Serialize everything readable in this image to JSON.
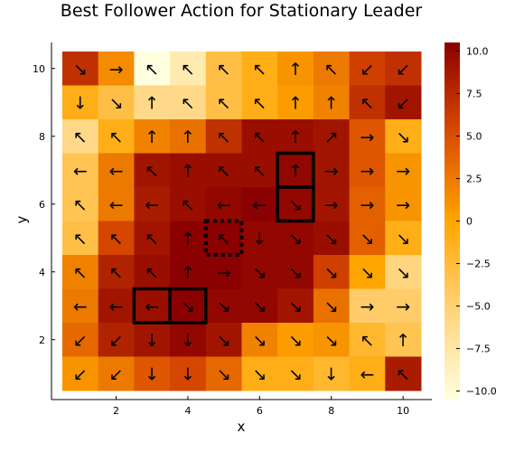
{
  "chart_data": {
    "type": "heatmap",
    "title": "Best Follower Action for Stationary Leader",
    "xlabel": "x",
    "ylabel": "y",
    "x": [
      1,
      2,
      3,
      4,
      5,
      6,
      7,
      8,
      9,
      10
    ],
    "y": [
      1,
      2,
      3,
      4,
      5,
      6,
      7,
      8,
      9,
      10
    ],
    "xlim": [
      0.5,
      10.5
    ],
    "ylim": [
      0.5,
      10.5
    ],
    "xticks": [
      2,
      4,
      6,
      8,
      10
    ],
    "yticks": [
      2,
      4,
      6,
      8,
      10
    ],
    "xtick_labels": [
      "2",
      "4",
      "6",
      "8",
      "10"
    ],
    "ytick_labels": [
      "2",
      "4",
      "6",
      "8",
      "10"
    ],
    "colormap": "heat",
    "color_range": [
      -10.5,
      10.5
    ],
    "colorbar_ticks": [
      10.0,
      7.5,
      5.0,
      2.5,
      0,
      -2.5,
      -5.0,
      -7.5,
      -10.0
    ],
    "colorbar_tick_labels": [
      "10.0",
      "7.5",
      "5.0",
      "2.5",
      "0",
      "−2.5",
      "−5.0",
      "−7.5",
      "−10.0"
    ],
    "grid": false,
    "values_by_row_from_top": [
      [
        7.0,
        1.5,
        -10.5,
        -8.0,
        -3.0,
        -1.0,
        1.0,
        2.5,
        6.0,
        7.0
      ],
      [
        -1.0,
        -3.0,
        -6.0,
        -6.0,
        -3.0,
        -1.0,
        0.5,
        2.0,
        7.0,
        9.0
      ],
      [
        -6.0,
        -1.0,
        2.0,
        3.0,
        7.0,
        9.5,
        9.5,
        9.0,
        4.5,
        -1.0
      ],
      [
        -3.5,
        2.5,
        9.0,
        9.5,
        9.5,
        9.5,
        10.0,
        9.0,
        4.5,
        1.0
      ],
      [
        -3.5,
        2.5,
        8.5,
        9.5,
        10.0,
        10.5,
        10.0,
        9.0,
        4.0,
        1.0
      ],
      [
        -3.0,
        5.5,
        9.0,
        10.5,
        10.5,
        10.0,
        10.0,
        9.5,
        4.0,
        -1.0
      ],
      [
        2.0,
        8.0,
        9.5,
        10.5,
        10.5,
        10.0,
        10.0,
        6.0,
        0.0,
        -5.5
      ],
      [
        2.5,
        9.0,
        9.5,
        10.5,
        10.0,
        10.0,
        9.0,
        3.0,
        -4.5,
        -4.5
      ],
      [
        3.5,
        8.0,
        9.0,
        10.0,
        9.0,
        2.0,
        0.5,
        1.0,
        -2.0,
        -3.5
      ],
      [
        1.0,
        2.5,
        4.5,
        5.5,
        3.5,
        -1.0,
        -1.0,
        -2.0,
        -1.0,
        8.5
      ]
    ],
    "arrows_by_row_from_top": [
      [
        "↘",
        "→",
        "↖",
        "↖",
        "↖",
        "↖",
        "↑",
        "↖",
        "↙",
        "↙"
      ],
      [
        "↓",
        "↘",
        "↑",
        "↖",
        "↖",
        "↖",
        "↑",
        "↑",
        "↖",
        "↙"
      ],
      [
        "↖",
        "↖",
        "↑",
        "↑",
        "↖",
        "↖",
        "↑",
        "↗",
        "→",
        "↘"
      ],
      [
        "←",
        "←",
        "↖",
        "↑",
        "↖",
        "↖",
        "↑",
        "→",
        "→",
        "→"
      ],
      [
        "↖",
        "←",
        "←",
        "↖",
        "←",
        "←",
        "↘",
        "→",
        "→",
        "→"
      ],
      [
        "↖",
        "↖",
        "↖",
        "↑",
        "↖",
        "↓",
        "↘",
        "↘",
        "↘",
        "↘"
      ],
      [
        "↖",
        "↖",
        "↖",
        "↑",
        "→",
        "↘",
        "↘",
        "↘",
        "↘",
        "↘"
      ],
      [
        "←",
        "←",
        "←",
        "↘",
        "↘",
        "↘",
        "↘",
        "↘",
        "→",
        "→"
      ],
      [
        "↙",
        "↙",
        "↓",
        "↓",
        "↘",
        "↘",
        "↘",
        "↘",
        "↖",
        "↑"
      ],
      [
        "↙",
        "↙",
        "↓",
        "↓",
        "↘",
        "↘",
        "↘",
        "↓",
        "←",
        "↖"
      ]
    ],
    "highlight_boxes": [
      {
        "x": 7,
        "y": 7,
        "style": "solid"
      },
      {
        "x": 7,
        "y": 6,
        "style": "solid"
      },
      {
        "x": 3,
        "y": 3,
        "style": "solid"
      },
      {
        "x": 4,
        "y": 3,
        "style": "solid"
      },
      {
        "x": 5,
        "y": 5,
        "style": "dotted"
      }
    ]
  }
}
